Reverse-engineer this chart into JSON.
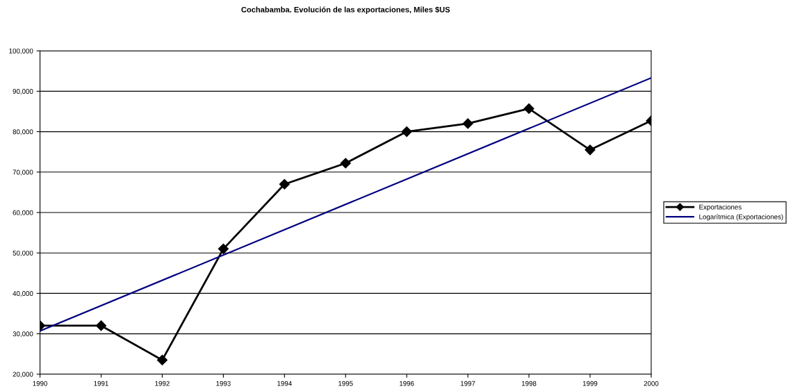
{
  "chart_data": {
    "type": "line",
    "title": "Cochabamba. Evolución de las exportaciones, Miles $US",
    "series": [
      {
        "name": "Exportaciones",
        "color": "#000000",
        "x": [
          1990,
          1991,
          1992,
          1993,
          1994,
          1995,
          1996,
          1997,
          1998,
          1999,
          2000
        ],
        "values": [
          32000,
          32000,
          23500,
          51000,
          67000,
          72200,
          80000,
          82000,
          85700,
          75500,
          82700
        ],
        "marker": "diamond"
      },
      {
        "name": "Logarítmica (Exportaciones)",
        "color": "#000080",
        "type": "line",
        "x": [
          1990,
          2000
        ],
        "values": [
          30700,
          93300
        ],
        "marker": "none"
      }
    ],
    "xlim": [
      1990,
      2000
    ],
    "xticks": [
      1990,
      1991,
      1992,
      1993,
      1994,
      1995,
      1996,
      1997,
      1998,
      1999,
      2000
    ],
    "ylim": [
      20000,
      100000
    ],
    "yticks": [
      {
        "value": 20000,
        "label": "20,000"
      },
      {
        "value": 30000,
        "label": "30,000"
      },
      {
        "value": 40000,
        "label": "40,000"
      },
      {
        "value": 50000,
        "label": "50,000"
      },
      {
        "value": 60000,
        "label": "60,000"
      },
      {
        "value": 70000,
        "label": "70,000"
      },
      {
        "value": 80000,
        "label": "80,000"
      },
      {
        "value": 90000,
        "label": "90,000"
      },
      {
        "value": 100000,
        "label": "100,000"
      }
    ],
    "grid": "y",
    "legend": "right",
    "line_style": "solid"
  }
}
